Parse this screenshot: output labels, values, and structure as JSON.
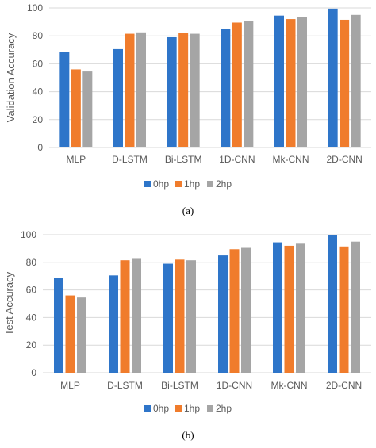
{
  "colors": {
    "series_0hp": "#2E75C9",
    "series_1hp": "#F07C2C",
    "series_2hp": "#A5A5A5",
    "grid": "#D9D9D9",
    "tick_text": "#595959",
    "caption_text": "#000000"
  },
  "chart_data": [
    {
      "type": "bar",
      "caption": "(a)",
      "ylabel": "Validation Accuracy",
      "xlabel": "",
      "ylim": [
        0,
        100
      ],
      "yticks": [
        0,
        20,
        40,
        60,
        80,
        100
      ],
      "grid": "horizontal",
      "legend_position": "bottom",
      "categories": [
        "MLP",
        "D-LSTM",
        "Bi-LSTM",
        "1D-CNN",
        "Mk-CNN",
        "2D-CNN"
      ],
      "series": [
        {
          "name": "0hp",
          "values": [
            68.5,
            70.5,
            79.0,
            85.0,
            94.5,
            99.5
          ]
        },
        {
          "name": "1hp",
          "values": [
            56.0,
            81.5,
            82.0,
            89.5,
            92.0,
            91.5
          ]
        },
        {
          "name": "2hp",
          "values": [
            54.5,
            82.5,
            81.5,
            90.5,
            93.5,
            95.0
          ]
        }
      ]
    },
    {
      "type": "bar",
      "caption": "(b)",
      "ylabel": "Test Accuracy",
      "xlabel": "",
      "ylim": [
        0,
        100
      ],
      "yticks": [
        0,
        20,
        40,
        60,
        80,
        100
      ],
      "grid": "horizontal",
      "legend_position": "bottom",
      "categories": [
        "MLP",
        "D-LSTM",
        "Bi-LSTM",
        "1D-CNN",
        "Mk-CNN",
        "2D-CNN"
      ],
      "series": [
        {
          "name": "0hp",
          "values": [
            68.5,
            70.5,
            79.0,
            85.0,
            94.5,
            99.5
          ]
        },
        {
          "name": "1hp",
          "values": [
            56.0,
            81.5,
            82.0,
            89.5,
            92.0,
            91.5
          ]
        },
        {
          "name": "2hp",
          "values": [
            54.5,
            82.5,
            81.5,
            90.5,
            93.5,
            95.0
          ]
        }
      ]
    }
  ]
}
